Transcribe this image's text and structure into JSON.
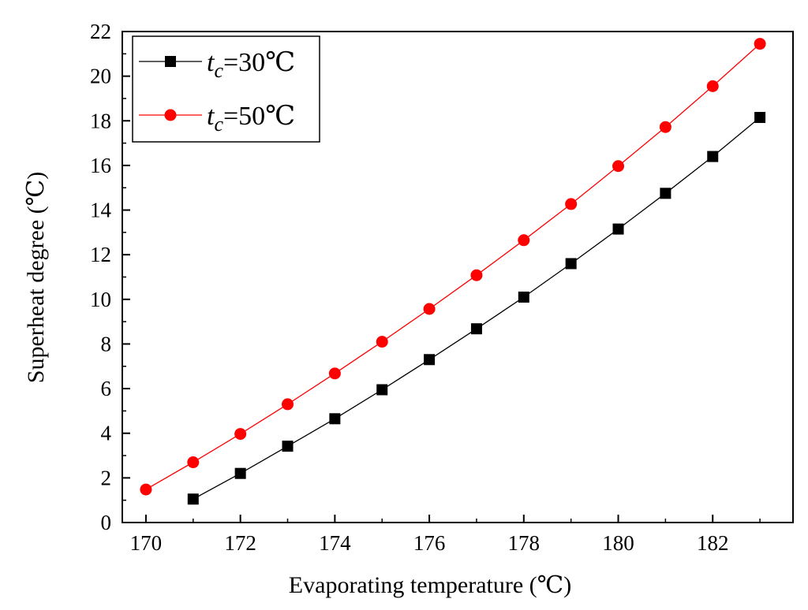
{
  "chart_data": {
    "type": "line",
    "title": "",
    "xlabel": "Evaporating temperature (℃)",
    "ylabel": "Superheat degree (℃)",
    "xlim": [
      169.5,
      183.7
    ],
    "ylim": [
      0,
      22
    ],
    "x_ticks": [
      170,
      172,
      174,
      176,
      178,
      180,
      182
    ],
    "y_ticks": [
      0,
      2,
      4,
      6,
      8,
      10,
      12,
      14,
      16,
      18,
      20,
      22
    ],
    "grid": false,
    "legend_position": "top-left",
    "series": [
      {
        "name": "tc=30℃",
        "legend_symbol": "t",
        "legend_subscript": "c",
        "legend_suffix": "=30℃",
        "color": "#000000",
        "marker": "square",
        "x": [
          171,
          172,
          173,
          174,
          175,
          176,
          177,
          178,
          179,
          180,
          181,
          182,
          183
        ],
        "values": [
          1.05,
          2.2,
          3.42,
          4.65,
          5.95,
          7.3,
          8.68,
          10.1,
          11.6,
          13.15,
          14.75,
          16.4,
          18.15
        ]
      },
      {
        "name": "tc=50℃",
        "legend_symbol": "t",
        "legend_subscript": "c",
        "legend_suffix": "=50℃",
        "color": "#ff0000",
        "marker": "circle",
        "x": [
          170,
          171,
          172,
          173,
          174,
          175,
          176,
          177,
          178,
          179,
          180,
          181,
          182,
          183
        ],
        "values": [
          1.48,
          2.7,
          3.97,
          5.3,
          6.68,
          8.1,
          9.57,
          11.08,
          12.65,
          14.27,
          15.97,
          17.72,
          19.55,
          21.45
        ]
      }
    ]
  }
}
